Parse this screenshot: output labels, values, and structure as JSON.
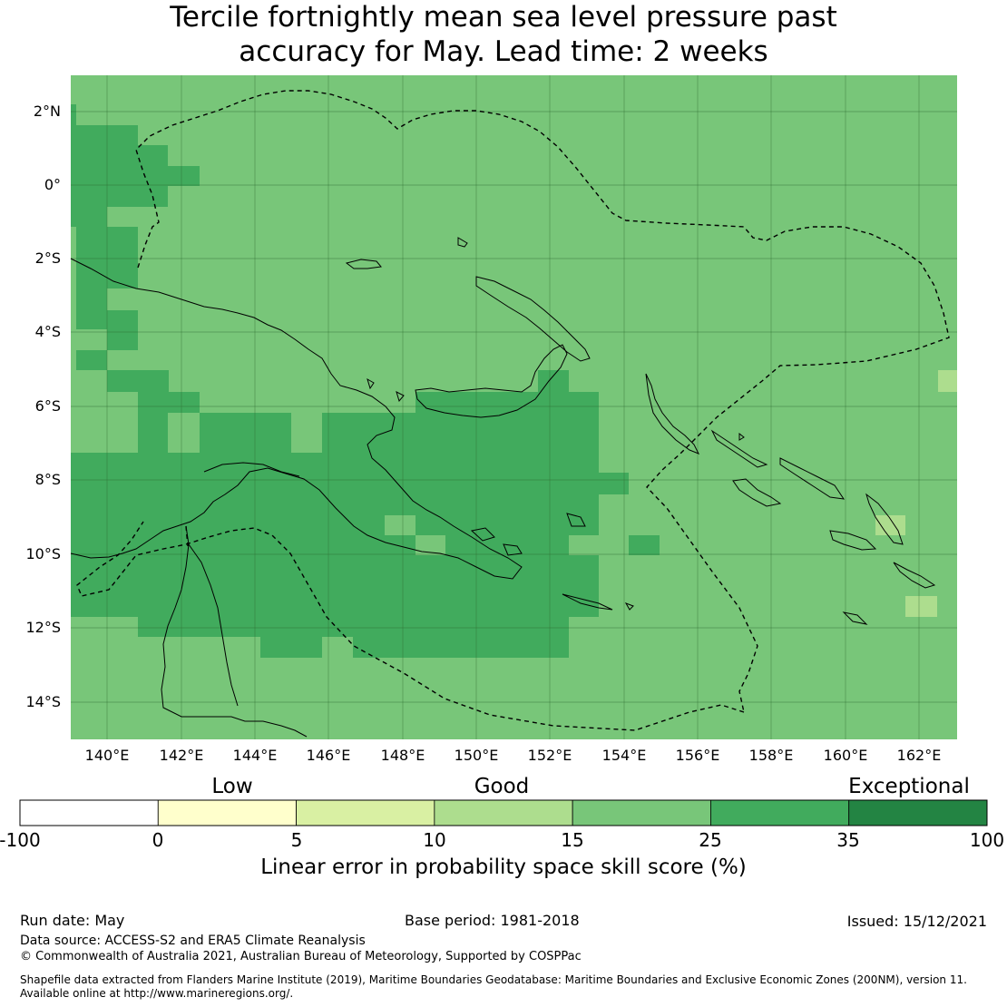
{
  "title": {
    "line1": "Tercile fortnightly mean sea level pressure past",
    "line2": "accuracy for May. Lead time: 2 weeks"
  },
  "map": {
    "lat_labels": [
      "2°N",
      "0°",
      "2°S",
      "4°S",
      "6°S",
      "8°S",
      "10°S",
      "12°S",
      "14°S"
    ],
    "lon_labels": [
      "140°E",
      "142°E",
      "144°E",
      "146°E",
      "148°E",
      "150°E",
      "152°E",
      "154°E",
      "156°E",
      "158°E",
      "160°E",
      "162°E"
    ],
    "lon_range": [
      139.0,
      163.0
    ],
    "lat_range": [
      -15.0,
      3.0
    ],
    "background_class": "15-25"
  },
  "legend": {
    "category_labels": {
      "low": "Low",
      "good": "Good",
      "exceptional": "Exceptional"
    },
    "ticks": [
      "-100",
      "0",
      "5",
      "10",
      "15",
      "25",
      "35",
      "100"
    ],
    "colors": [
      "#ffffff",
      "#ffffcc",
      "#d9f0a3",
      "#addd8e",
      "#78c679",
      "#41ab5d",
      "#238443"
    ],
    "title": "Linear error in probability space skill score (%)"
  },
  "footer": {
    "run_date": "Run date: May",
    "base_period": "Base period: 1981-2018",
    "issued": "Issued: 15/12/2021",
    "data_source": "Data source: ACCESS-S2 and ERA5 Climate Reanalysis",
    "copyright": "© Commonwealth of Australia 2021, Australian Bureau of Meteorology, Supported by COSPPac",
    "shapefile_line1": "Shapefile data extracted from Flanders Marine Institute (2019), Maritime Boundaries Geodatabase: Maritime Boundaries and Exclusive Economic Zones (200NM), version 11.",
    "shapefile_line2": "Available online at http://www.marineregions.org/."
  }
}
